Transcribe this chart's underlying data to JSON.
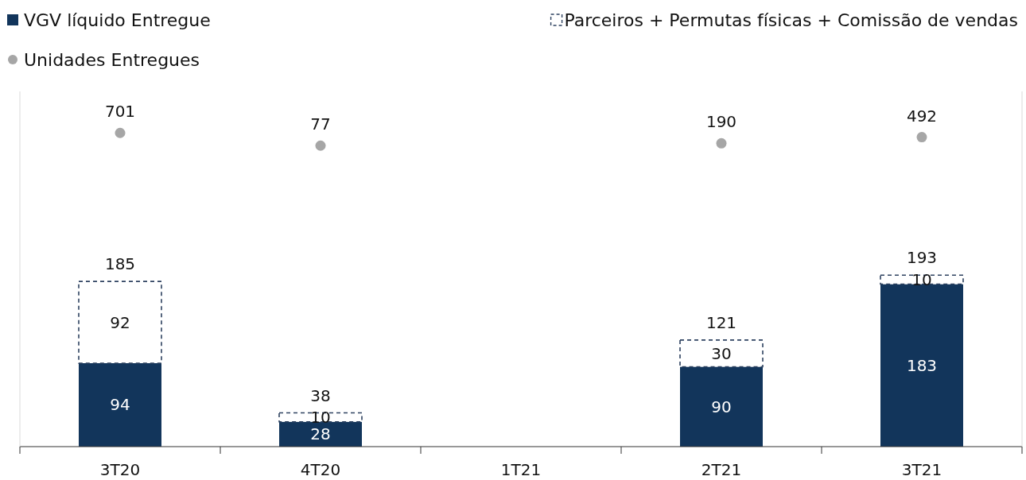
{
  "chart_data": {
    "type": "bar",
    "categories": [
      "3T20",
      "4T20",
      "1T21",
      "2T21",
      "3T21"
    ],
    "stacked": true,
    "data_labels": true,
    "legend": "top",
    "ylim": [
      0,
      400
    ],
    "y2lim": [
      -14700,
      2740
    ],
    "tick_labels": "x",
    "series": [
      {
        "name": "VGV líquido Entregue",
        "color": "#12355b",
        "values": [
          94,
          28,
          null,
          90,
          183
        ]
      },
      {
        "name": "Parceiros + Permutas físicas + Comissão de vendas",
        "color": "#2e4260",
        "line_style": "dashed",
        "values": [
          92,
          10,
          null,
          30,
          10
        ]
      },
      {
        "name": "Unidades Entregues",
        "type": "scatter",
        "axis": "y2",
        "marker": "circle",
        "color": "#a6a6a6",
        "values": [
          701,
          77,
          null,
          190,
          492
        ]
      }
    ],
    "totals": [
      "185",
      "38",
      null,
      "121",
      "193"
    ]
  }
}
